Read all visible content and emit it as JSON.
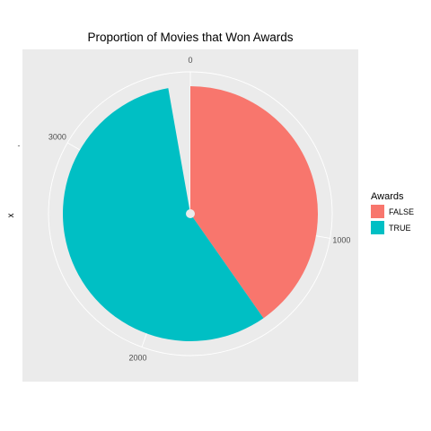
{
  "chart_data": {
    "type": "pie",
    "title": "Proportion of Movies that Won Awards",
    "ylabel": "x",
    "y_tick_label": "-",
    "theta_range": [
      0,
      3600
    ],
    "theta_ticks": [
      {
        "value": 0,
        "label": "0"
      },
      {
        "value": 1000,
        "label": "1000"
      },
      {
        "value": 2000,
        "label": "2000"
      },
      {
        "value": 3000,
        "label": "3000"
      }
    ],
    "slices": [
      {
        "label": "FALSE",
        "value": 1450,
        "color": "#F8766D"
      },
      {
        "label": "TRUE",
        "value": 2050,
        "color": "#00BFC4"
      }
    ],
    "legend": {
      "title": "Awards",
      "position": "right",
      "items": [
        {
          "label": "FALSE",
          "color": "#F8766D"
        },
        {
          "label": "TRUE",
          "color": "#00BFC4"
        }
      ]
    },
    "grid": true,
    "panel_background": "#EBEBEB",
    "grid_color": "#FFFFFF"
  }
}
